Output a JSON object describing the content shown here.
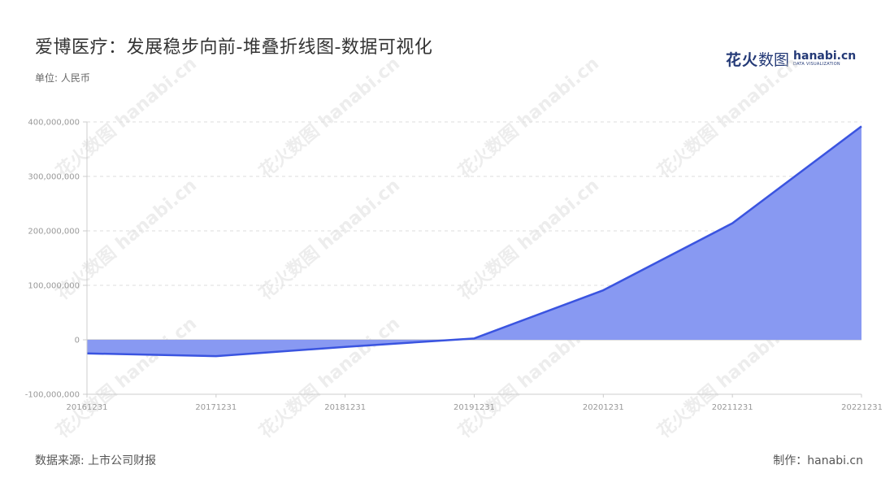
{
  "header": {
    "title": "爱博医疗：发展稳步向前-堆叠折线图-数据可视化",
    "unit": "单位: 人民币"
  },
  "brand": {
    "cn_bold": "花火",
    "cn_light": "数图",
    "en_main": "hanabi.cn",
    "en_sub": "DATA VISUALIZATION"
  },
  "footer": {
    "source": "数据来源: 上市公司财报",
    "credit": "制作：hanabi.cn"
  },
  "watermark_text": "花火数图 hanabi.cn",
  "colors": {
    "line": "#3a54e0",
    "area": "#8899f2",
    "grid": "#dddddd",
    "axis": "#cccccc"
  },
  "chart_data": {
    "type": "area",
    "x": [
      "20161231",
      "20171231",
      "20181231",
      "20191231",
      "20201231",
      "20211231",
      "20221231"
    ],
    "series": [
      {
        "values": [
          -25000000,
          -30000000,
          -13000000,
          2500000,
          91000000,
          214000000,
          392000000
        ]
      }
    ],
    "ylim": [
      -100000000,
      400000000
    ],
    "yticks": [
      {
        "value": 400000000,
        "label": "400,000,000"
      },
      {
        "value": 300000000,
        "label": "300,000,000"
      },
      {
        "value": 200000000,
        "label": "200,000,000"
      },
      {
        "value": 100000000,
        "label": "100,000,000"
      },
      {
        "value": 0,
        "label": "0"
      },
      {
        "value": -100000000,
        "label": "-100,000,000"
      }
    ],
    "grid": true,
    "legend": false
  }
}
